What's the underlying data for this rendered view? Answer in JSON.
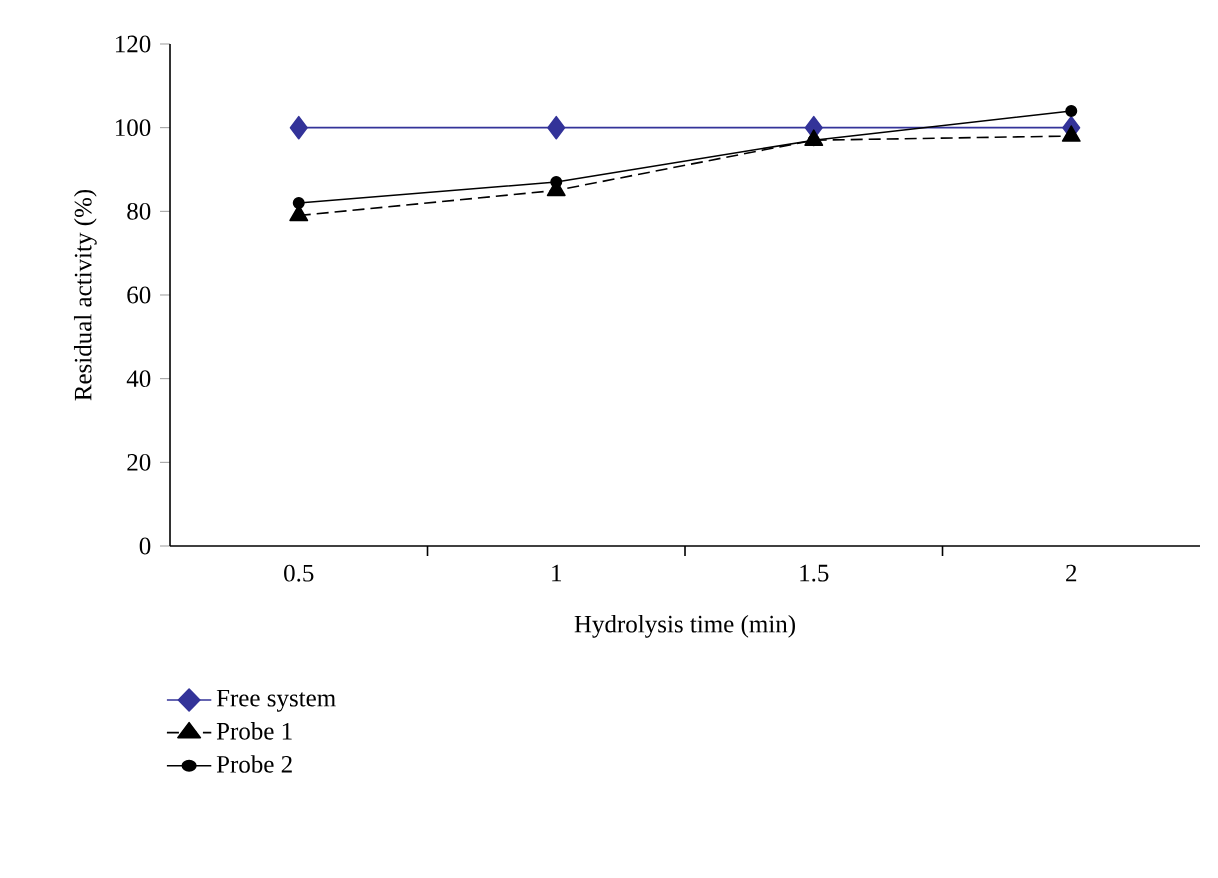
{
  "chart_data": {
    "type": "line",
    "xlabel": "Hydrolysis time (min)",
    "ylabel": "Residual activity (%)",
    "categories": [
      "0.5",
      "1",
      "1.5",
      "2"
    ],
    "ylim": [
      0,
      120
    ],
    "yticks": [
      0,
      20,
      40,
      60,
      80,
      100,
      120
    ],
    "grid": false,
    "legend": "bottom left",
    "series": [
      {
        "name": "Free system",
        "color": "#333399",
        "marker": "diamond",
        "line_style": "solid",
        "values": [
          100,
          100,
          100,
          100
        ]
      },
      {
        "name": "Probe 1",
        "color": "#000000",
        "marker": "triangle",
        "line_style": "dashed",
        "values": [
          79,
          85,
          97,
          98
        ]
      },
      {
        "name": "Probe 2",
        "color": "#000000",
        "marker": "circle",
        "line_style": "solid",
        "values": [
          82,
          87,
          97,
          104
        ]
      }
    ]
  }
}
